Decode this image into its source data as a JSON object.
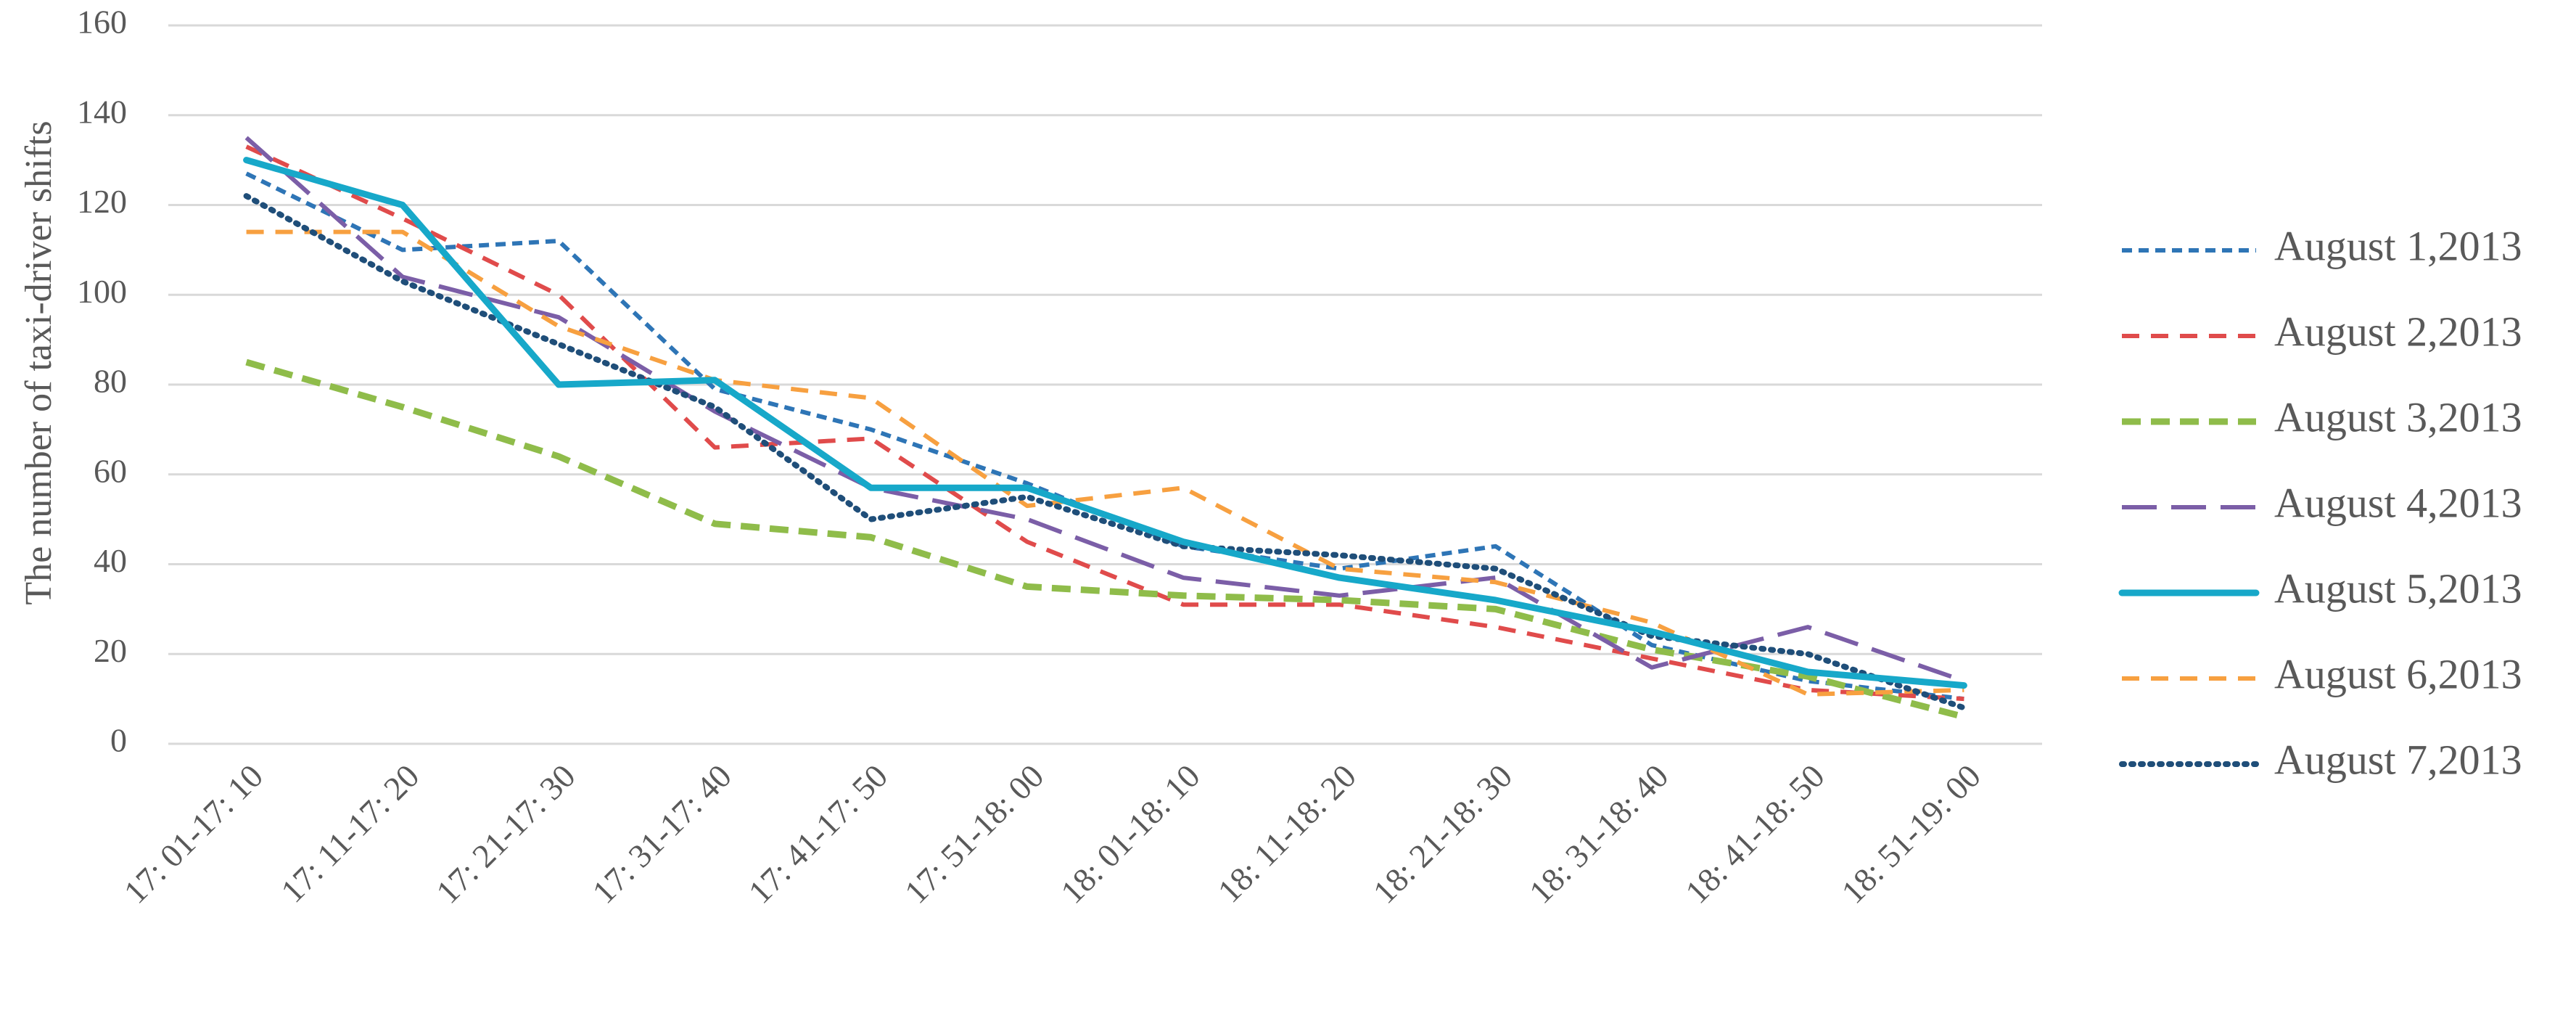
{
  "chart_data": {
    "type": "line",
    "title": "",
    "xlabel": "",
    "ylabel": "The number of taxi-driver shifts",
    "ylim": [
      0,
      160
    ],
    "yticks": [
      0,
      20,
      40,
      60,
      80,
      100,
      120,
      140,
      160
    ],
    "grid": true,
    "legend_position": "right",
    "categories": [
      "17:  01-17:  10",
      "17:  11-17:  20",
      "17:  21-17:  30",
      "17:  31-17:  40",
      "17:  41-17:  50",
      "17:  51-18:  00",
      "18:  01-18:  10",
      "18:  11-18:  20",
      "18:  21-18:  30",
      "18:  31-18:  40",
      "18:  41-18:  50",
      "18:  51-19:  00"
    ],
    "series": [
      {
        "name": "August 1,2013",
        "color": "#2e75b6",
        "dash": "short-dash",
        "values": [
          127,
          110,
          112,
          79,
          70,
          58,
          44,
          39,
          44,
          22,
          14,
          10
        ]
      },
      {
        "name": "August 2,2013",
        "color": "#e04b4b",
        "dash": "dash",
        "values": [
          133,
          117,
          100,
          66,
          68,
          45,
          31,
          31,
          26,
          19,
          12,
          10
        ]
      },
      {
        "name": "August 3,2013",
        "color": "#8fbc4a",
        "dash": "dash-bold",
        "values": [
          85,
          75,
          64,
          49,
          46,
          35,
          33,
          32,
          30,
          21,
          15,
          6
        ]
      },
      {
        "name": "August 4,2013",
        "color": "#7b5ea7",
        "dash": "long-dash",
        "values": [
          135,
          104,
          95,
          74,
          57,
          50,
          37,
          33,
          37,
          17,
          26,
          14
        ]
      },
      {
        "name": "August 5,2013",
        "color": "#17a8c9",
        "dash": "solid",
        "values": [
          130,
          120,
          80,
          81,
          57,
          57,
          45,
          37,
          32,
          25,
          16,
          13
        ]
      },
      {
        "name": "August 6,2013",
        "color": "#f7a040",
        "dash": "dash",
        "values": [
          114,
          114,
          93,
          81,
          77,
          53,
          57,
          39,
          36,
          27,
          11,
          12
        ]
      },
      {
        "name": "August 7,2013",
        "color": "#1f4e79",
        "dash": "dot",
        "values": [
          122,
          103,
          89,
          75,
          50,
          55,
          44,
          42,
          39,
          24,
          20,
          8
        ]
      }
    ]
  }
}
